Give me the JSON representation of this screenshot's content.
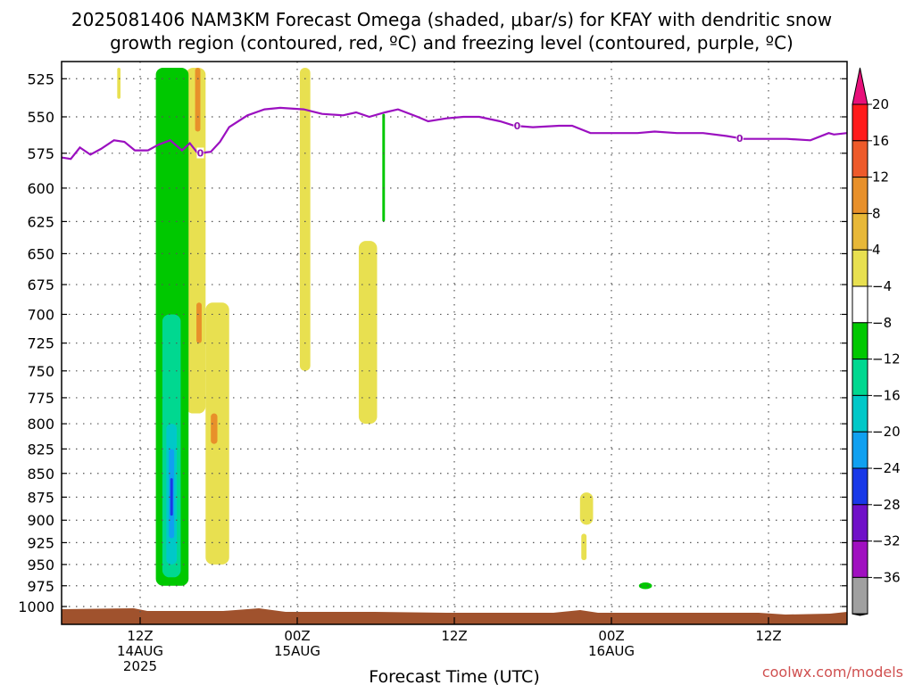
{
  "title": {
    "line1": "2025081406 NAM3KM Forecast Omega (shaded, μbar/s) for KFAY with dendritic snow",
    "line2": "growth region (contoured, red, ºC) and freezing level (contoured, purple, ºC)"
  },
  "credit": "coolwx.com/models",
  "chart_data": {
    "type": "heatmap",
    "title": "2025081406 NAM3KM Forecast Omega (shaded, μbar/s) for KFAY with dendritic snow growth region (contoured, red, ºC) and freezing level (contoured, purple, ºC)",
    "xlabel": "Forecast Time (UTC)",
    "ylabel": "",
    "x_axis": {
      "range_hours": [
        6,
        66
      ],
      "ticks": [
        {
          "hour": 12,
          "lines": [
            "12Z",
            "14AUG",
            "2025"
          ]
        },
        {
          "hour": 24,
          "lines": [
            "00Z",
            "15AUG"
          ]
        },
        {
          "hour": 36,
          "lines": [
            "12Z"
          ]
        },
        {
          "hour": 48,
          "lines": [
            "00Z",
            "16AUG"
          ]
        },
        {
          "hour": 60,
          "lines": [
            "12Z"
          ]
        }
      ]
    },
    "y_axis": {
      "units": "hPa",
      "reversed": true,
      "ticks": [
        525,
        550,
        575,
        600,
        625,
        650,
        675,
        700,
        725,
        750,
        775,
        800,
        825,
        850,
        875,
        900,
        925,
        950,
        975,
        1000
      ]
    },
    "grid": true,
    "colorbar": {
      "labels": [
        "20",
        "16",
        "12",
        "8",
        "4",
        "−4",
        "−8",
        "−12",
        "−16",
        "−20",
        "−24",
        "−28",
        "−32",
        "−36"
      ],
      "colors": [
        "#ff1a1a",
        "#ee5a2a",
        "#e8902a",
        "#e8b838",
        "#e8e050",
        "#ffffff",
        "#00c800",
        "#00d890",
        "#00c8c8",
        "#10a0f0",
        "#1838e8",
        "#7010c8",
        "#a010c0",
        "#a0a0a0"
      ],
      "top_arrow_color": "#e8107a",
      "bottom_arrow_color": "#000000"
    },
    "freezing_level": {
      "label": "0",
      "points": [
        [
          6.0,
          578
        ],
        [
          6.7,
          579
        ],
        [
          7.4,
          571
        ],
        [
          8.2,
          576
        ],
        [
          9.0,
          572
        ],
        [
          10.0,
          566
        ],
        [
          10.8,
          567
        ],
        [
          11.6,
          573
        ],
        [
          12.6,
          573
        ],
        [
          13.4,
          569
        ],
        [
          14.3,
          566
        ],
        [
          15.2,
          573
        ],
        [
          15.8,
          568
        ],
        [
          16.4,
          575
        ],
        [
          17.4,
          574
        ],
        [
          18.1,
          567
        ],
        [
          18.8,
          557
        ],
        [
          20.2,
          549
        ],
        [
          21.5,
          545
        ],
        [
          22.7,
          544
        ],
        [
          24.5,
          545
        ],
        [
          25.9,
          548
        ],
        [
          27.5,
          549
        ],
        [
          28.5,
          547
        ],
        [
          29.5,
          550
        ],
        [
          30.7,
          547
        ],
        [
          31.7,
          545
        ],
        [
          33.2,
          550
        ],
        [
          34.0,
          553
        ],
        [
          35.4,
          551
        ],
        [
          36.7,
          550
        ],
        [
          37.9,
          550
        ],
        [
          39.5,
          553
        ],
        [
          40.6,
          556
        ],
        [
          42.0,
          557
        ],
        [
          44.0,
          556
        ],
        [
          45.0,
          556
        ],
        [
          46.4,
          561
        ],
        [
          48.1,
          561
        ],
        [
          50.0,
          561
        ],
        [
          51.3,
          560
        ],
        [
          53.0,
          561
        ],
        [
          55.0,
          561
        ],
        [
          56.8,
          563
        ],
        [
          58.1,
          565
        ],
        [
          60.0,
          565
        ],
        [
          61.4,
          565
        ],
        [
          63.2,
          566
        ],
        [
          64.6,
          561
        ],
        [
          65.0,
          562
        ],
        [
          66.0,
          561
        ]
      ],
      "label_hours": [
        16.6,
        40.8,
        57.8
      ]
    },
    "omega_features": [
      {
        "band": "4",
        "hours": [
          10.25,
          10.5
        ],
        "pres": [
          518,
          538
        ]
      },
      {
        "band": "4",
        "hours": [
          15.5,
          17.0
        ],
        "pres": [
          518,
          790
        ]
      },
      {
        "band": "8",
        "hours": [
          16.2,
          16.6
        ],
        "pres": [
          518,
          560
        ]
      },
      {
        "band": "8",
        "hours": [
          16.3,
          16.7
        ],
        "pres": [
          690,
          725
        ]
      },
      {
        "band": "4",
        "hours": [
          17.0,
          18.8
        ],
        "pres": [
          690,
          950
        ]
      },
      {
        "band": "8",
        "hours": [
          17.4,
          17.9
        ],
        "pres": [
          790,
          820
        ]
      },
      {
        "band": "4",
        "hours": [
          24.2,
          25.0
        ],
        "pres": [
          518,
          750
        ]
      },
      {
        "band": "4",
        "hours": [
          28.7,
          30.1
        ],
        "pres": [
          640,
          800
        ]
      },
      {
        "band": "-4",
        "hours": [
          13.2,
          15.7
        ],
        "pres": [
          518,
          975
        ]
      },
      {
        "band": "-8",
        "hours": [
          13.7,
          15.1
        ],
        "pres": [
          700,
          965
        ]
      },
      {
        "band": "-12",
        "hours": [
          14.0,
          14.8
        ],
        "pres": [
          800,
          950
        ]
      },
      {
        "band": "-16",
        "hours": [
          14.2,
          14.6
        ],
        "pres": [
          825,
          920
        ]
      },
      {
        "band": "-20",
        "hours": [
          14.3,
          14.5
        ],
        "pres": [
          855,
          895
        ]
      },
      {
        "band": "-4",
        "hours": [
          30.5,
          30.7
        ],
        "pres": [
          548,
          625
        ]
      },
      {
        "band": "4",
        "hours": [
          45.6,
          46.6
        ],
        "pres": [
          870,
          905
        ]
      },
      {
        "band": "4",
        "hours": [
          45.7,
          46.1
        ],
        "pres": [
          915,
          945
        ]
      },
      {
        "band": "-4",
        "hours": [
          50.1,
          51.1
        ],
        "pres": [
          971,
          979
        ]
      }
    ],
    "terrain": {
      "description": "surface ground",
      "color": "#a0522d"
    }
  }
}
